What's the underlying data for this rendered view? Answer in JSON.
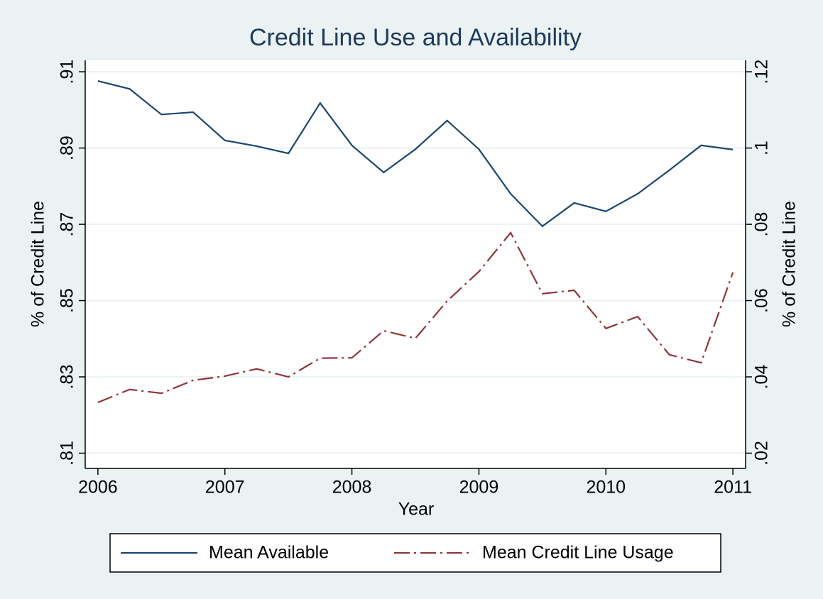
{
  "chart_data": {
    "type": "line",
    "title": "Credit Line Use and Availability",
    "x_label": "Year",
    "y_label": "% of Credit Line",
    "y2_label": "% of Credit Line",
    "x": [
      2006,
      2006.25,
      2006.5,
      2006.75,
      2007,
      2007.25,
      2007.5,
      2007.75,
      2008,
      2008.25,
      2008.5,
      2008.75,
      2009,
      2009.25,
      2009.5,
      2009.75,
      2010,
      2010.25,
      2010.5,
      2010.75,
      2011
    ],
    "series": [
      {
        "name": "Mean Available",
        "color": "#1a476f",
        "dash": "solid",
        "values": [
          0.9076,
          0.9055,
          0.8988,
          0.8994,
          0.892,
          0.8905,
          0.8886,
          0.9018,
          0.8907,
          0.8836,
          0.8897,
          0.8972,
          0.8897,
          0.878,
          0.8695,
          0.8756,
          0.8734,
          0.878,
          0.8842,
          0.8907,
          0.8896
        ]
      },
      {
        "name": "Mean Credit Line Usage",
        "color": "#90353b",
        "dash": "dash-dot",
        "axis": "y2",
        "values": [
          0.0333,
          0.0367,
          0.0357,
          0.0391,
          0.0402,
          0.0421,
          0.04,
          0.0449,
          0.045,
          0.0521,
          0.0501,
          0.0599,
          0.0676,
          0.0778,
          0.0618,
          0.0627,
          0.0527,
          0.0558,
          0.0458,
          0.0437,
          0.0674
        ]
      }
    ],
    "xlim": [
      2005.9,
      2011.1
    ],
    "xticks": [
      2006,
      2007,
      2008,
      2009,
      2010,
      2011
    ],
    "ylim": [
      0.806,
      0.913
    ],
    "yticks": [
      {
        "value": 0.81,
        "label": ".81"
      },
      {
        "value": 0.83,
        "label": ".83"
      },
      {
        "value": 0.85,
        "label": ".85"
      },
      {
        "value": 0.87,
        "label": ".87"
      },
      {
        "value": 0.89,
        "label": ".89"
      },
      {
        "value": 0.91,
        "label": ".91"
      }
    ],
    "y2lim": [
      0.016,
      0.123
    ],
    "y2ticks": [
      {
        "value": 0.02,
        "label": ".02"
      },
      {
        "value": 0.04,
        "label": ".04"
      },
      {
        "value": 0.06,
        "label": ".06"
      },
      {
        "value": 0.08,
        "label": ".08"
      },
      {
        "value": 0.1,
        "label": ".1"
      },
      {
        "value": 0.12,
        "label": ".12"
      }
    ],
    "grid": true,
    "legend": "bottom"
  }
}
